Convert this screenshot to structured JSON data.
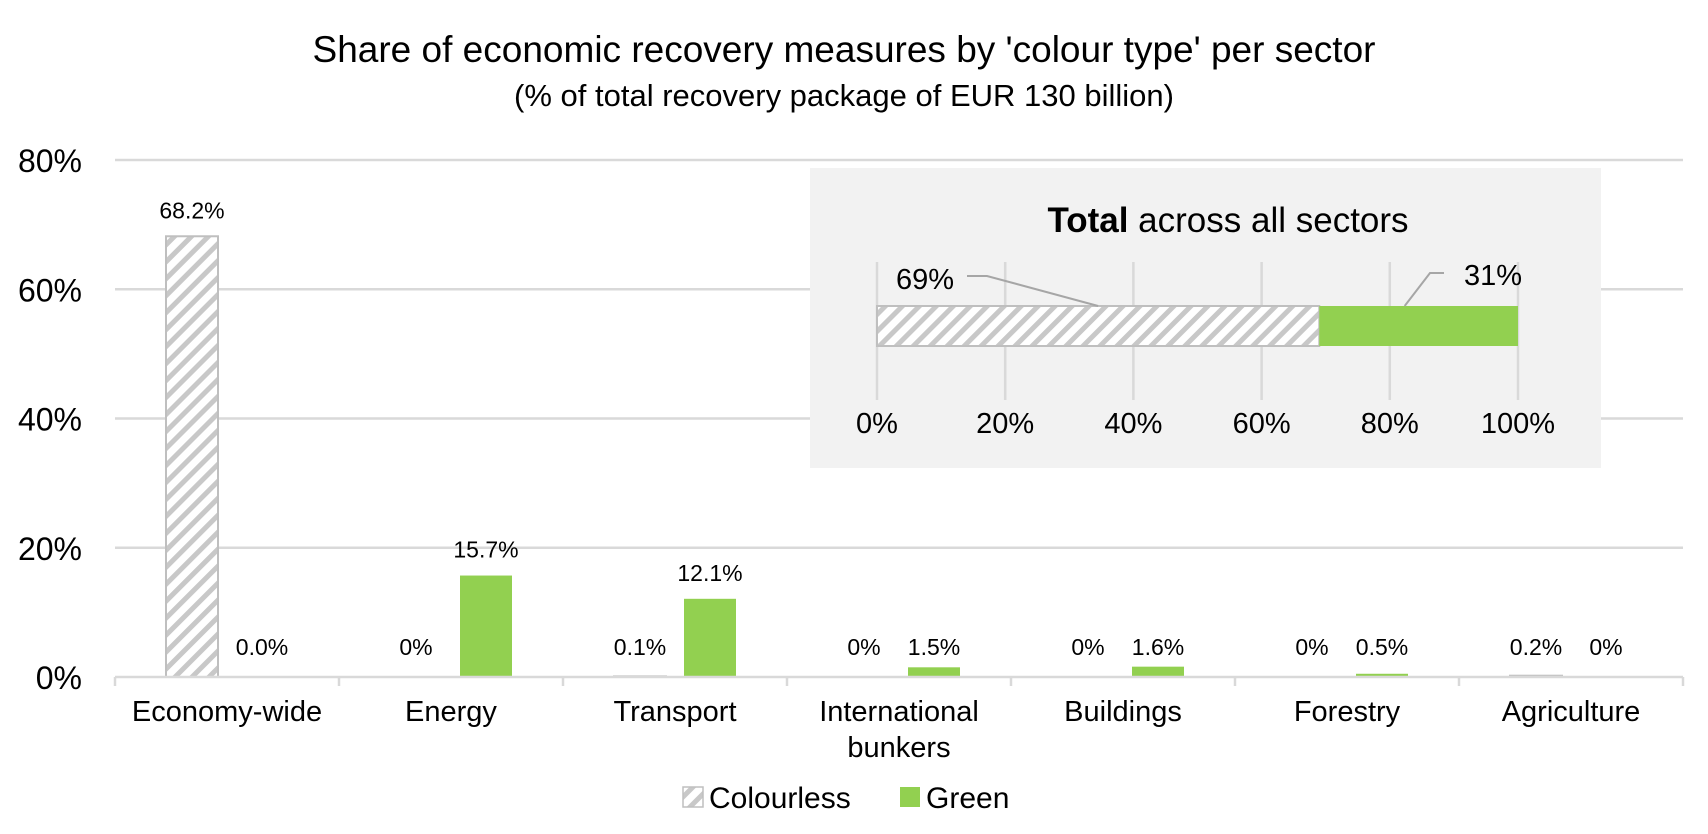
{
  "chart_data": {
    "type": "bar",
    "title": "Share of economic recovery measures by 'colour type' per sector",
    "subtitle": "(% of total recovery package of EUR 130 billion)",
    "categories": [
      "Economy-wide",
      "Energy",
      "Transport",
      "International bunkers",
      "Buildings",
      "Forestry",
      "Agriculture"
    ],
    "category_lines": [
      [
        "Economy-wide"
      ],
      [
        "Energy"
      ],
      [
        "Transport"
      ],
      [
        "International",
        "bunkers"
      ],
      [
        "Buildings"
      ],
      [
        "Forestry"
      ],
      [
        "Agriculture"
      ]
    ],
    "ylim": [
      0,
      80
    ],
    "yticks": [
      0,
      20,
      40,
      60,
      80
    ],
    "ytick_labels": [
      "0%",
      "20%",
      "40%",
      "60%",
      "80%"
    ],
    "grid": true,
    "legend_position": "bottom",
    "series": [
      {
        "name": "Colourless",
        "pattern": "hatched",
        "color": "#c8c8c8",
        "values": [
          68.2,
          0,
          0.1,
          0,
          0,
          0,
          0.2
        ],
        "labels": [
          "68.2%",
          "0%",
          "0.1%",
          "0%",
          "0%",
          "0%",
          "0.2%"
        ]
      },
      {
        "name": "Green",
        "color": "#92d050",
        "values": [
          0,
          15.7,
          12.1,
          1.5,
          1.6,
          0.5,
          0
        ],
        "labels": [
          "0.0%",
          "15.7%",
          "12.1%",
          "1.5%",
          "1.6%",
          "0.5%",
          "0%"
        ]
      }
    ],
    "inset": {
      "type": "stacked-bar-horizontal",
      "title_bold": "Total",
      "title_rest": " across all sectors",
      "xlim": [
        0,
        100
      ],
      "xticks": [
        0,
        20,
        40,
        60,
        80,
        100
      ],
      "xtick_labels": [
        "0%",
        "20%",
        "40%",
        "60%",
        "80%",
        "100%"
      ],
      "background": "#f2f2f2",
      "segments": [
        {
          "name": "Colourless",
          "value": 69,
          "label": "69%"
        },
        {
          "name": "Green",
          "value": 31,
          "label": "31%"
        }
      ]
    }
  }
}
